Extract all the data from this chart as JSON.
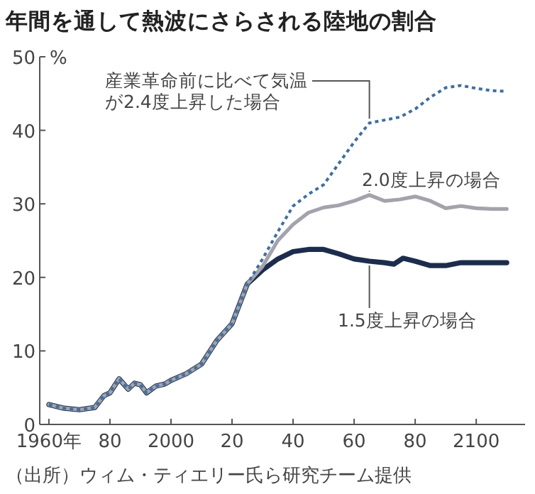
{
  "chart_data": {
    "type": "line",
    "title": "年間を通して熱波にさらされる陸地の割合",
    "ylabel": "%",
    "xlim": [
      1957,
      2116
    ],
    "ylim": [
      0,
      50
    ],
    "xticks": [
      {
        "value": 1960,
        "label": "1960年"
      },
      {
        "value": 1980,
        "label": "80"
      },
      2000,
      {
        "value": 2020,
        "label": "20"
      },
      {
        "value": 2040,
        "label": "40"
      },
      {
        "value": 2060,
        "label": "60"
      },
      {
        "value": 2080,
        "label": "80"
      },
      2100
    ],
    "yticks": [
      0,
      10,
      20,
      30,
      40,
      50
    ],
    "grid": false,
    "legend": false,
    "annotations": [
      "（出所）ウィム・ティエリー氏ら研究チーム提供"
    ],
    "series": [
      {
        "name": "産業革命前に比べて気温が2.4度上昇した場合",
        "color": "#3f6f9f",
        "line_style": "dotted",
        "x": [
          1960,
          1965,
          1970,
          1975,
          1978,
          1980,
          1983,
          1986,
          1988,
          1990,
          1992,
          1995,
          1998,
          2000,
          2005,
          2010,
          2015,
          2020,
          2025,
          2030,
          2035,
          2040,
          2045,
          2050,
          2055,
          2060,
          2065,
          2070,
          2075,
          2080,
          2085,
          2090,
          2095,
          2100,
          2105,
          2110
        ],
        "values": [
          2.7,
          2.2,
          2.0,
          2.3,
          3.9,
          4.3,
          6.2,
          4.8,
          5.6,
          5.4,
          4.3,
          5.2,
          5.5,
          6.0,
          6.9,
          8.2,
          11.4,
          13.7,
          19.1,
          22.5,
          26.2,
          29.7,
          31.3,
          32.6,
          35.5,
          38.4,
          41.0,
          41.4,
          41.8,
          42.9,
          44.5,
          45.8,
          46.1,
          45.7,
          45.4,
          45.3
        ]
      },
      {
        "name": "2.0度上昇の場合",
        "color": "#a3a3ad",
        "line_style": "solid",
        "x": [
          1960,
          1965,
          1970,
          1975,
          1978,
          1980,
          1983,
          1986,
          1988,
          1990,
          1992,
          1995,
          1998,
          2000,
          2005,
          2010,
          2015,
          2020,
          2025,
          2030,
          2035,
          2040,
          2045,
          2050,
          2055,
          2060,
          2065,
          2070,
          2075,
          2080,
          2085,
          2090,
          2095,
          2100,
          2105,
          2110
        ],
        "values": [
          2.7,
          2.2,
          2.0,
          2.3,
          3.9,
          4.3,
          6.2,
          4.8,
          5.6,
          5.4,
          4.3,
          5.2,
          5.5,
          6.0,
          6.9,
          8.2,
          11.4,
          13.7,
          19.1,
          21.5,
          25.0,
          27.2,
          28.8,
          29.5,
          29.8,
          30.4,
          31.2,
          30.4,
          30.6,
          31.0,
          30.4,
          29.4,
          29.7,
          29.4,
          29.3,
          29.3
        ]
      },
      {
        "name": "1.5度上昇の場合",
        "color": "#1c2c4c",
        "line_style": "solid",
        "x": [
          1960,
          1965,
          1970,
          1975,
          1978,
          1980,
          1983,
          1986,
          1988,
          1990,
          1992,
          1995,
          1998,
          2000,
          2005,
          2010,
          2015,
          2020,
          2025,
          2030,
          2035,
          2040,
          2045,
          2050,
          2055,
          2060,
          2065,
          2070,
          2073,
          2076,
          2080,
          2085,
          2090,
          2095,
          2100,
          2105,
          2110
        ],
        "values": [
          2.7,
          2.2,
          2.0,
          2.3,
          3.9,
          4.3,
          6.2,
          4.8,
          5.6,
          5.4,
          4.3,
          5.2,
          5.5,
          6.0,
          6.9,
          8.2,
          11.4,
          13.7,
          19.1,
          21.0,
          22.5,
          23.5,
          23.8,
          23.8,
          23.2,
          22.5,
          22.2,
          22.0,
          21.8,
          22.6,
          22.2,
          21.6,
          21.6,
          22.0,
          22.0,
          22.0,
          22.0
        ]
      }
    ]
  }
}
